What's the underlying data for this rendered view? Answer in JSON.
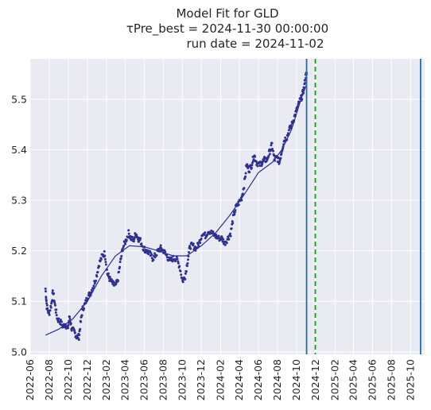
{
  "chart_data": {
    "type": "scatter",
    "title": "Model Fit for GLD",
    "subtitle_lines": [
      "τPre_best = 2024-11-30 00:00:00",
      "run date = 2024-11-02"
    ],
    "xlabel": "",
    "ylabel": "",
    "xlim": [
      "2022-06-01",
      "2025-11-15"
    ],
    "ylim": [
      4.995,
      5.58
    ],
    "grid": true,
    "background": "#EAEAF2",
    "x_ticks": [
      "2022-06",
      "2022-08",
      "2022-10",
      "2022-12",
      "2023-02",
      "2023-04",
      "2023-06",
      "2023-08",
      "2023-10",
      "2023-12",
      "2024-02",
      "2024-04",
      "2024-06",
      "2024-08",
      "2024-10",
      "2024-12",
      "2025-02",
      "2025-04",
      "2025-06",
      "2025-08",
      "2025-10"
    ],
    "y_ticks": [
      "5.0",
      "5.1",
      "5.2",
      "5.3",
      "5.4",
      "5.5"
    ],
    "colors": {
      "points": "#2E3192",
      "fit_line": "#2E3192",
      "vertical_solid": "#1F6FA8",
      "vertical_dashed": "#13A013"
    },
    "vertical_lines": [
      {
        "x": "2024-11-02",
        "style": "solid",
        "color": "#1F6FA8"
      },
      {
        "x": "2024-11-30",
        "style": "dashed",
        "color": "#13A013"
      },
      {
        "x": "2025-11-02",
        "style": "solid",
        "color": "#1F6FA8"
      }
    ],
    "points_anchor": [
      [
        "2022-07-20",
        5.125
      ],
      [
        "2022-07-24",
        5.09
      ],
      [
        "2022-07-31",
        5.075
      ],
      [
        "2022-08-08",
        5.095
      ],
      [
        "2022-08-13",
        5.12
      ],
      [
        "2022-08-20",
        5.09
      ],
      [
        "2022-08-27",
        5.065
      ],
      [
        "2022-09-05",
        5.06
      ],
      [
        "2022-09-14",
        5.05
      ],
      [
        "2022-09-22",
        5.055
      ],
      [
        "2022-09-29",
        5.045
      ],
      [
        "2022-10-05",
        5.07
      ],
      [
        "2022-10-12",
        5.045
      ],
      [
        "2022-10-20",
        5.04
      ],
      [
        "2022-10-28",
        5.03
      ],
      [
        "2022-11-04",
        5.03
      ],
      [
        "2022-11-10",
        5.06
      ],
      [
        "2022-11-16",
        5.085
      ],
      [
        "2022-11-24",
        5.095
      ],
      [
        "2022-12-02",
        5.11
      ],
      [
        "2022-12-10",
        5.115
      ],
      [
        "2022-12-20",
        5.13
      ],
      [
        "2022-12-30",
        5.15
      ],
      [
        "2023-01-08",
        5.175
      ],
      [
        "2023-01-18",
        5.19
      ],
      [
        "2023-01-26",
        5.195
      ],
      [
        "2023-02-03",
        5.155
      ],
      [
        "2023-02-10",
        5.145
      ],
      [
        "2023-02-20",
        5.135
      ],
      [
        "2023-02-28",
        5.13
      ],
      [
        "2023-03-08",
        5.14
      ],
      [
        "2023-03-16",
        5.175
      ],
      [
        "2023-03-24",
        5.205
      ],
      [
        "2023-04-03",
        5.22
      ],
      [
        "2023-04-12",
        5.235
      ],
      [
        "2023-04-20",
        5.225
      ],
      [
        "2023-04-28",
        5.22
      ],
      [
        "2023-05-05",
        5.235
      ],
      [
        "2023-05-12",
        5.225
      ],
      [
        "2023-05-20",
        5.22
      ],
      [
        "2023-05-30",
        5.205
      ],
      [
        "2023-06-08",
        5.2
      ],
      [
        "2023-06-18",
        5.195
      ],
      [
        "2023-06-28",
        5.185
      ],
      [
        "2023-07-06",
        5.19
      ],
      [
        "2023-07-16",
        5.2
      ],
      [
        "2023-07-24",
        5.205
      ],
      [
        "2023-08-02",
        5.2
      ],
      [
        "2023-08-12",
        5.19
      ],
      [
        "2023-08-22",
        5.18
      ],
      [
        "2023-09-02",
        5.185
      ],
      [
        "2023-09-12",
        5.185
      ],
      [
        "2023-09-22",
        5.17
      ],
      [
        "2023-10-02",
        5.14
      ],
      [
        "2023-10-10",
        5.15
      ],
      [
        "2023-10-18",
        5.18
      ],
      [
        "2023-10-26",
        5.21
      ],
      [
        "2023-11-04",
        5.21
      ],
      [
        "2023-11-14",
        5.205
      ],
      [
        "2023-11-24",
        5.215
      ],
      [
        "2023-12-04",
        5.235
      ],
      [
        "2023-12-14",
        5.23
      ],
      [
        "2023-12-24",
        5.24
      ],
      [
        "2024-01-04",
        5.235
      ],
      [
        "2024-01-14",
        5.23
      ],
      [
        "2024-01-24",
        5.225
      ],
      [
        "2024-02-04",
        5.225
      ],
      [
        "2024-02-14",
        5.215
      ],
      [
        "2024-02-24",
        5.225
      ],
      [
        "2024-03-04",
        5.235
      ],
      [
        "2024-03-12",
        5.265
      ],
      [
        "2024-03-20",
        5.285
      ],
      [
        "2024-03-30",
        5.295
      ],
      [
        "2024-04-08",
        5.305
      ],
      [
        "2024-04-16",
        5.33
      ],
      [
        "2024-04-24",
        5.37
      ],
      [
        "2024-05-02",
        5.36
      ],
      [
        "2024-05-10",
        5.37
      ],
      [
        "2024-05-18",
        5.39
      ],
      [
        "2024-05-26",
        5.375
      ],
      [
        "2024-06-04",
        5.37
      ],
      [
        "2024-06-12",
        5.375
      ],
      [
        "2024-06-20",
        5.38
      ],
      [
        "2024-06-28",
        5.38
      ],
      [
        "2024-07-06",
        5.395
      ],
      [
        "2024-07-14",
        5.41
      ],
      [
        "2024-07-22",
        5.38
      ],
      [
        "2024-07-30",
        5.385
      ],
      [
        "2024-08-07",
        5.375
      ],
      [
        "2024-08-15",
        5.4
      ],
      [
        "2024-08-23",
        5.42
      ],
      [
        "2024-08-31",
        5.425
      ],
      [
        "2024-09-08",
        5.44
      ],
      [
        "2024-09-16",
        5.45
      ],
      [
        "2024-09-24",
        5.465
      ],
      [
        "2024-10-02",
        5.48
      ],
      [
        "2024-10-10",
        5.495
      ],
      [
        "2024-10-18",
        5.505
      ],
      [
        "2024-10-24",
        5.52
      ],
      [
        "2024-10-30",
        5.545
      ],
      [
        "2024-11-02",
        5.55
      ]
    ],
    "fit_line": [
      [
        "2022-07-20",
        5.033
      ],
      [
        "2022-09-01",
        5.045
      ],
      [
        "2022-10-15",
        5.065
      ],
      [
        "2022-12-01",
        5.1
      ],
      [
        "2023-01-15",
        5.15
      ],
      [
        "2023-03-01",
        5.19
      ],
      [
        "2023-04-15",
        5.21
      ],
      [
        "2023-06-01",
        5.208
      ],
      [
        "2023-07-15",
        5.2
      ],
      [
        "2023-09-01",
        5.19
      ],
      [
        "2023-10-15",
        5.19
      ],
      [
        "2023-12-01",
        5.21
      ],
      [
        "2024-01-15",
        5.235
      ],
      [
        "2024-03-01",
        5.27
      ],
      [
        "2024-04-15",
        5.31
      ],
      [
        "2024-06-01",
        5.355
      ],
      [
        "2024-07-15",
        5.375
      ],
      [
        "2024-08-15",
        5.4
      ],
      [
        "2024-09-15",
        5.44
      ],
      [
        "2024-10-15",
        5.5
      ],
      [
        "2024-11-02",
        5.53
      ]
    ]
  }
}
